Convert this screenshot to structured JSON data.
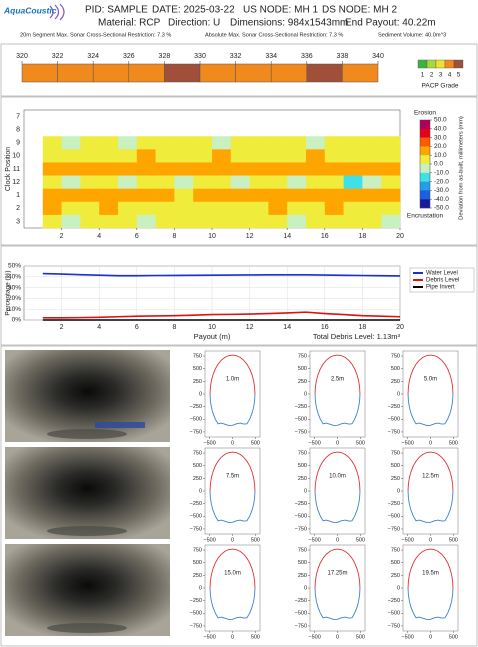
{
  "header": {
    "logo": "AquaCoustic",
    "pid": "PID: SAMPLE",
    "date": "DATE: 2025-03-22",
    "us_node": "US NODE: MH 1",
    "ds_node": "DS NODE: MH 2",
    "material": "Material: RCP",
    "direction": "Direction: U",
    "dimensions": "Dimensions: 984x1543mm",
    "end_payout": "End Payout: 40.22m",
    "notes": [
      "20m Segment Max. Sonar Cross-Sectional Restriction: 7.3 %",
      "Absolute Max. Sonar Cross-Sectional Restriction: 7.3 %",
      "Sediment Volume: 40.0m^3"
    ]
  },
  "chart_data": [
    {
      "type": "grade-strip",
      "bins": [
        320,
        322,
        324,
        326,
        328,
        330,
        332,
        334,
        336,
        338,
        340
      ],
      "values": [
        4,
        4,
        4,
        4,
        5,
        4,
        4,
        4,
        5,
        4
      ],
      "legend_title": "PACP Grade",
      "legend": [
        1,
        2,
        3,
        4,
        5
      ],
      "legend_colors": [
        "#3cb43c",
        "#a8d840",
        "#f0e030",
        "#f08a1c",
        "#a0503a"
      ]
    },
    {
      "type": "heatmap",
      "y_label": "Clock Position",
      "y_categories": [
        "7",
        "8",
        "9",
        "10",
        "11",
        "12",
        "1",
        "2",
        "3"
      ],
      "xlim": [
        0,
        20
      ],
      "xticks": [
        2,
        4,
        6,
        8,
        10,
        12,
        14,
        16,
        18,
        20
      ],
      "bins": [
        1,
        2,
        3,
        4,
        5,
        6,
        7,
        8,
        9,
        10,
        11,
        12,
        13,
        14,
        15,
        16,
        17,
        18,
        19,
        20
      ],
      "z": [
        [
          null,
          null,
          null,
          null,
          null,
          null,
          null,
          null,
          null,
          null,
          null,
          null,
          null,
          null,
          null,
          null,
          null,
          null,
          null
        ],
        [
          null,
          null,
          null,
          null,
          null,
          null,
          null,
          null,
          null,
          null,
          null,
          null,
          null,
          null,
          null,
          null,
          null,
          null,
          null
        ],
        [
          3,
          -6,
          2,
          4,
          -3,
          5,
          2,
          6,
          1,
          -4,
          3,
          5,
          2,
          4,
          -2,
          6,
          3,
          1,
          4
        ],
        [
          8,
          6,
          10,
          7,
          9,
          12,
          8,
          6,
          9,
          11,
          7,
          10,
          8,
          9,
          12,
          7,
          6,
          8,
          9
        ],
        [
          16,
          14,
          18,
          20,
          15,
          17,
          19,
          16,
          13,
          15,
          14,
          16,
          18,
          12,
          20,
          17,
          15,
          14,
          16
        ],
        [
          4,
          -8,
          2,
          5,
          -4,
          3,
          6,
          -2,
          4,
          5,
          -6,
          3,
          2,
          -3,
          5,
          1,
          -10,
          -5,
          2
        ],
        [
          18,
          15,
          20,
          14,
          16,
          12,
          14,
          10,
          12,
          15,
          13,
          11,
          14,
          16,
          12,
          13,
          15,
          14,
          12
        ],
        [
          12,
          10,
          8,
          11,
          9,
          10,
          8,
          9,
          7,
          10,
          8,
          9,
          11,
          10,
          8,
          12,
          9,
          10,
          8
        ],
        [
          6,
          -2,
          4,
          5,
          3,
          -4,
          5,
          2,
          4,
          6,
          3,
          1,
          5,
          -3,
          4,
          2,
          3,
          5,
          -1
        ]
      ],
      "zlim": [
        -50,
        50
      ],
      "zticks": [
        {
          "value": 50,
          "label": "50.0"
        },
        {
          "value": 40,
          "label": "40.0"
        },
        {
          "value": 30,
          "label": "30.0"
        },
        {
          "value": 20,
          "label": "20.0"
        },
        {
          "value": 10,
          "label": "10.0"
        },
        {
          "value": 0,
          "label": "0.0"
        },
        {
          "value": -10,
          "label": "-10.0"
        },
        {
          "value": -20,
          "label": "-20.0"
        },
        {
          "value": -30,
          "label": "-30.0"
        },
        {
          "value": -40,
          "label": "-40.0"
        },
        {
          "value": -50,
          "label": "-50.0"
        }
      ],
      "zcolors": [
        "#b0005a",
        "#e6001a",
        "#ff5a00",
        "#ffa500",
        "#f0ec3c",
        "#c9f0c0",
        "#40e0e8",
        "#20a0e8",
        "#1a60e0",
        "#1a1aa0"
      ],
      "colorbar_top": "Erosion",
      "colorbar_bottom": "Encrustation",
      "colorbar_label": "Deviation from as-built, millimeters (mm)"
    },
    {
      "type": "line",
      "x_label": "Payout (m)",
      "y_label": "Percentage (%)",
      "annotation": "Total Debris Level: 1.13m³",
      "x": [
        1,
        2,
        3,
        4,
        5,
        6,
        7,
        8,
        9,
        10,
        11,
        12,
        13,
        14,
        15,
        16,
        17,
        18,
        19,
        20
      ],
      "xlim": [
        0,
        20
      ],
      "xticks": [
        2,
        4,
        6,
        8,
        10,
        12,
        14,
        16,
        18,
        20
      ],
      "ylim": [
        0,
        50
      ],
      "yticks": [
        {
          "value": 0,
          "label": "0%"
        },
        {
          "value": 10,
          "label": "10%"
        },
        {
          "value": 20,
          "label": "20%"
        },
        {
          "value": 30,
          "label": "30%"
        },
        {
          "value": 40,
          "label": "40%"
        },
        {
          "value": 50,
          "label": "50%"
        }
      ],
      "series": [
        {
          "name": "Water Level",
          "color": "#1a2fd0",
          "values": [
            43,
            42.5,
            42,
            41.5,
            41,
            41,
            41.2,
            41.3,
            41.4,
            41.5,
            41.6,
            41.7,
            41.8,
            41.8,
            41.8,
            41.6,
            41.4,
            41.2,
            41,
            40.8
          ]
        },
        {
          "name": "Debris Level",
          "color": "#e01010",
          "values": [
            2,
            2,
            2.2,
            2.5,
            3,
            3.5,
            3.8,
            4,
            4.5,
            5,
            5.2,
            5.5,
            6,
            6.5,
            7.3,
            6,
            5,
            4,
            3.5,
            3
          ]
        },
        {
          "name": "Pipe Invert",
          "color": "#000000",
          "values": [
            0,
            0,
            0,
            0,
            0,
            0,
            0,
            0,
            0,
            0,
            0,
            0,
            0,
            0,
            0,
            0,
            0,
            0,
            0,
            0
          ]
        }
      ]
    },
    {
      "type": "cross-section",
      "xlim": [
        -600,
        600
      ],
      "xticks": [
        {
          "value": -500,
          "label": "−500"
        },
        0,
        500
      ],
      "ylim": [
        -850,
        850
      ],
      "yticks": [
        750,
        500,
        250,
        0,
        {
          "value": -250,
          "label": "−250"
        },
        {
          "value": -500,
          "label": "−500"
        },
        {
          "value": -750,
          "label": "−750"
        }
      ],
      "panels": [
        "1.0m",
        "2.5m",
        "5.0m",
        "7.5m",
        "10.0m",
        "12.5m",
        "15.0m",
        "17.25m",
        "19.5m"
      ]
    }
  ]
}
